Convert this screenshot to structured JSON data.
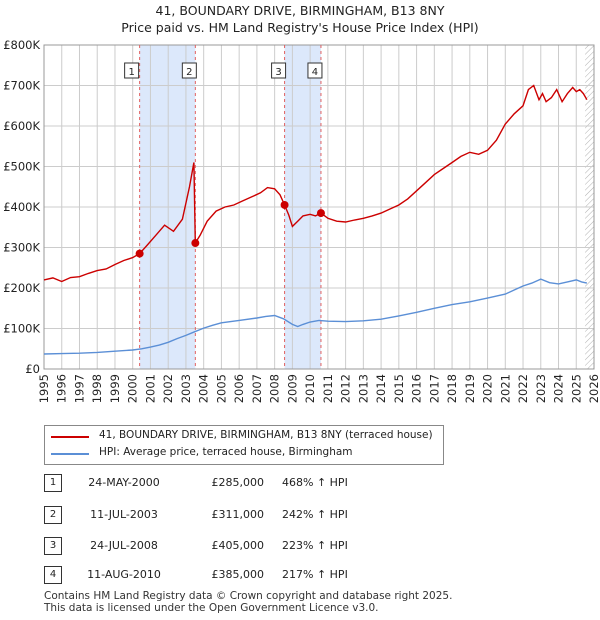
{
  "title": "41, BOUNDARY DRIVE, BIRMINGHAM, B13 8NY",
  "subtitle": "Price paid vs. HM Land Registry's House Price Index (HPI)",
  "colors": {
    "property": "#cc0000",
    "hpi": "#5b8fd6",
    "shade": "#dce8fb",
    "grid": "#cccccc"
  },
  "chart_data": {
    "type": "line",
    "title": "41, BOUNDARY DRIVE, BIRMINGHAM, B13 8NY",
    "subtitle": "Price paid vs. HM Land Registry's House Price Index (HPI)",
    "xlabel": "",
    "ylabel": "",
    "xlim": [
      1995,
      2026
    ],
    "ylim": [
      0,
      800000
    ],
    "x_ticks": [
      "1995",
      "1996",
      "1997",
      "1998",
      "1999",
      "2000",
      "2001",
      "2002",
      "2003",
      "2004",
      "2005",
      "2006",
      "2007",
      "2008",
      "2009",
      "2010",
      "2011",
      "2012",
      "2013",
      "2014",
      "2015",
      "2016",
      "2017",
      "2018",
      "2019",
      "2020",
      "2021",
      "2022",
      "2023",
      "2024",
      "2025",
      "2026"
    ],
    "y_ticks": [
      {
        "value": 0,
        "label": "£0"
      },
      {
        "value": 100000,
        "label": "£100K"
      },
      {
        "value": 200000,
        "label": "£200K"
      },
      {
        "value": 300000,
        "label": "£300K"
      },
      {
        "value": 400000,
        "label": "£400K"
      },
      {
        "value": 500000,
        "label": "£500K"
      },
      {
        "value": 600000,
        "label": "£600K"
      },
      {
        "value": 700000,
        "label": "£700K"
      },
      {
        "value": 800000,
        "label": "£800K"
      }
    ],
    "shaded_ranges": [
      [
        2000.39,
        2003.53
      ],
      [
        2008.56,
        2010.61
      ]
    ],
    "series": [
      {
        "name": "41, BOUNDARY DRIVE, BIRMINGHAM, B13 8NY (terraced house)",
        "x": [
          1995.0,
          1995.5,
          1996.0,
          1996.5,
          1997.0,
          1997.5,
          1998.0,
          1998.5,
          1999.0,
          1999.5,
          2000.0,
          2000.39,
          2000.8,
          2001.3,
          2001.8,
          2002.3,
          2002.8,
          2003.2,
          2003.45,
          2003.53,
          2003.8,
          2004.2,
          2004.7,
          2005.2,
          2005.7,
          2006.2,
          2006.7,
          2007.2,
          2007.6,
          2008.0,
          2008.3,
          2008.56,
          2008.8,
          2009.0,
          2009.3,
          2009.6,
          2010.0,
          2010.3,
          2010.61,
          2011.0,
          2011.5,
          2012.0,
          2012.5,
          2013.0,
          2013.5,
          2014.0,
          2014.5,
          2015.0,
          2015.5,
          2016.0,
          2016.5,
          2017.0,
          2017.5,
          2018.0,
          2018.5,
          2019.0,
          2019.5,
          2020.0,
          2020.5,
          2021.0,
          2021.5,
          2022.0,
          2022.3,
          2022.6,
          2022.9,
          2023.1,
          2023.3,
          2023.6,
          2023.9,
          2024.2,
          2024.5,
          2024.8,
          2025.0,
          2025.2,
          2025.4,
          2025.6
        ],
        "values": [
          220000,
          225000,
          216000,
          226000,
          228000,
          236000,
          243000,
          247000,
          258000,
          268000,
          275000,
          285000,
          305000,
          330000,
          355000,
          340000,
          370000,
          450000,
          510000,
          311000,
          330000,
          365000,
          390000,
          400000,
          405000,
          415000,
          425000,
          435000,
          448000,
          445000,
          430000,
          405000,
          380000,
          352000,
          365000,
          378000,
          382000,
          378000,
          385000,
          372000,
          365000,
          363000,
          368000,
          372000,
          378000,
          385000,
          395000,
          405000,
          420000,
          440000,
          460000,
          480000,
          495000,
          510000,
          525000,
          535000,
          530000,
          540000,
          565000,
          605000,
          630000,
          650000,
          690000,
          700000,
          665000,
          680000,
          660000,
          670000,
          690000,
          660000,
          680000,
          695000,
          685000,
          690000,
          680000,
          665000
        ]
      },
      {
        "name": "HPI: Average price, terraced house, Birmingham",
        "x": [
          1995.0,
          1996.0,
          1997.0,
          1998.0,
          1999.0,
          2000.0,
          2000.5,
          2001.0,
          2001.5,
          2002.0,
          2002.5,
          2003.0,
          2003.5,
          2004.0,
          2004.5,
          2005.0,
          2006.0,
          2007.0,
          2007.5,
          2008.0,
          2008.5,
          2009.0,
          2009.3,
          2009.6,
          2010.0,
          2010.5,
          2011.0,
          2012.0,
          2013.0,
          2014.0,
          2015.0,
          2016.0,
          2017.0,
          2018.0,
          2019.0,
          2020.0,
          2021.0,
          2021.5,
          2022.0,
          2022.5,
          2023.0,
          2023.5,
          2024.0,
          2024.5,
          2025.0,
          2025.3,
          2025.6
        ],
        "values": [
          37000,
          38000,
          39000,
          41000,
          44000,
          47000,
          50000,
          54000,
          59000,
          66000,
          75000,
          83000,
          92000,
          101000,
          108000,
          114000,
          120000,
          126000,
          130000,
          132000,
          124000,
          110000,
          105000,
          110000,
          116000,
          120000,
          118000,
          117000,
          119000,
          123000,
          131000,
          140000,
          150000,
          159000,
          166000,
          175000,
          185000,
          195000,
          205000,
          212000,
          222000,
          213000,
          210000,
          215000,
          220000,
          215000,
          212000
        ]
      }
    ],
    "annotations": [
      {
        "label": "1",
        "x": 2000.39,
        "y": 285000
      },
      {
        "label": "2",
        "x": 2003.53,
        "y": 311000
      },
      {
        "label": "3",
        "x": 2008.56,
        "y": 405000
      },
      {
        "label": "4",
        "x": 2010.61,
        "y": 385000
      }
    ]
  },
  "legend": {
    "property_label": "41, BOUNDARY DRIVE, BIRMINGHAM, B13 8NY (terraced house)",
    "hpi_label": "HPI: Average price, terraced house, Birmingham"
  },
  "sales": [
    {
      "num": "1",
      "date": "24-MAY-2000",
      "price": "£285,000",
      "hpi": "468% ↑ HPI"
    },
    {
      "num": "2",
      "date": "11-JUL-2003",
      "price": "£311,000",
      "hpi": "242% ↑ HPI"
    },
    {
      "num": "3",
      "date": "24-JUL-2008",
      "price": "£405,000",
      "hpi": "223% ↑ HPI"
    },
    {
      "num": "4",
      "date": "11-AUG-2010",
      "price": "£385,000",
      "hpi": "217% ↑ HPI"
    }
  ],
  "footer": {
    "line1": "Contains HM Land Registry data © Crown copyright and database right 2025.",
    "line2": "This data is licensed under the Open Government Licence v3.0."
  }
}
